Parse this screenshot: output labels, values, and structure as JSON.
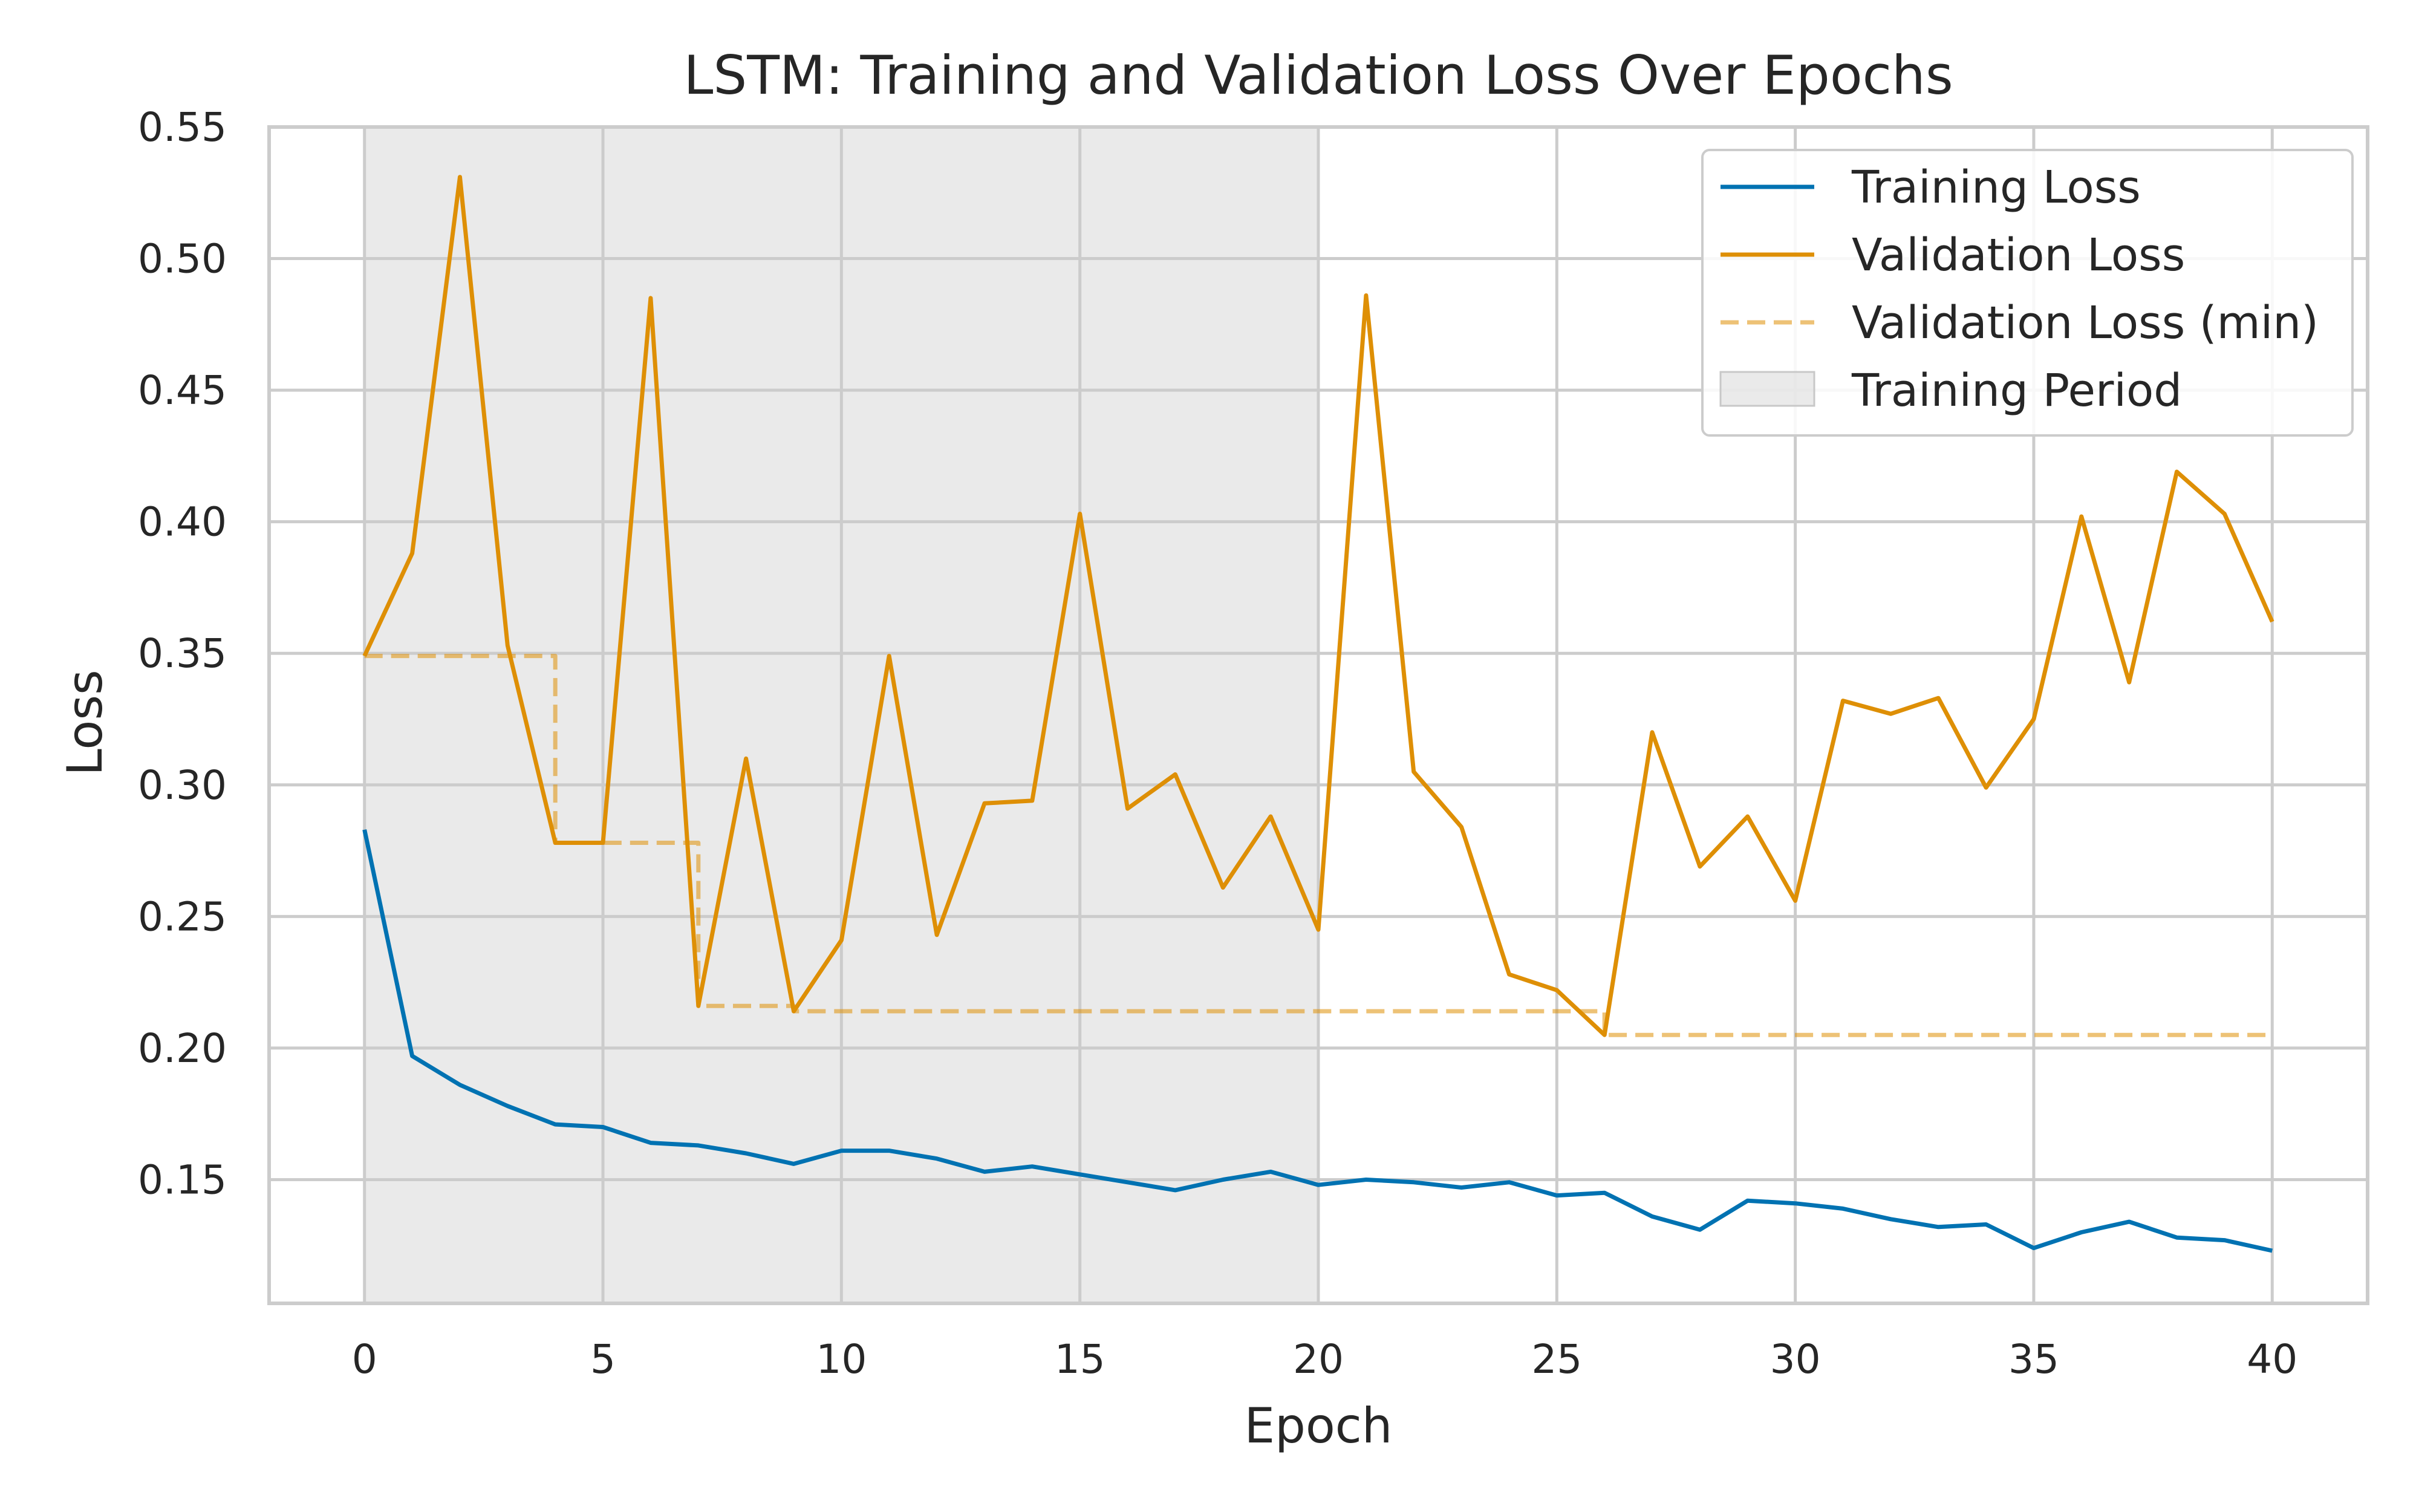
{
  "chart_data": {
    "type": "line",
    "title": "LSTM: Training and Validation Loss Over Epochs",
    "xlabel": "Epoch",
    "ylabel": "Loss",
    "xlim": [
      -2,
      42
    ],
    "ylim": [
      0.103,
      0.55
    ],
    "xticks": [
      0,
      5,
      10,
      15,
      20,
      25,
      30,
      35,
      40
    ],
    "xtick_labels": [
      "0",
      "5",
      "10",
      "15",
      "20",
      "25",
      "30",
      "35",
      "40"
    ],
    "yticks": [
      0.15,
      0.2,
      0.25,
      0.3,
      0.35,
      0.4,
      0.45,
      0.5,
      0.55
    ],
    "ytick_labels": [
      "0.15",
      "0.20",
      "0.25",
      "0.30",
      "0.35",
      "0.40",
      "0.45",
      "0.50",
      "0.55"
    ],
    "grid": true,
    "legend_position": "top-right",
    "shaded_region": {
      "name": "Training Period",
      "x_start": 0,
      "x_end": 20,
      "color": "#d9d9d9"
    },
    "series": [
      {
        "name": "Training Loss",
        "color": "#0072b2",
        "style": "solid",
        "x": [
          0,
          1,
          2,
          3,
          4,
          5,
          6,
          7,
          8,
          9,
          10,
          11,
          12,
          13,
          14,
          15,
          16,
          17,
          18,
          19,
          20,
          21,
          22,
          23,
          24,
          25,
          26,
          27,
          28,
          29,
          30,
          31,
          32,
          33,
          34,
          35,
          36,
          37,
          38,
          39,
          40
        ],
        "values": [
          0.283,
          0.197,
          0.186,
          0.178,
          0.171,
          0.17,
          0.164,
          0.163,
          0.16,
          0.156,
          0.161,
          0.161,
          0.158,
          0.153,
          0.155,
          0.152,
          0.149,
          0.146,
          0.15,
          0.153,
          0.148,
          0.15,
          0.149,
          0.147,
          0.149,
          0.144,
          0.145,
          0.136,
          0.131,
          0.142,
          0.141,
          0.139,
          0.135,
          0.132,
          0.133,
          0.124,
          0.13,
          0.134,
          0.128,
          0.127,
          0.123
        ]
      },
      {
        "name": "Validation Loss",
        "color": "#de8f05",
        "style": "solid",
        "x": [
          0,
          1,
          2,
          3,
          4,
          5,
          6,
          7,
          8,
          9,
          10,
          11,
          12,
          13,
          14,
          15,
          16,
          17,
          18,
          19,
          20,
          21,
          22,
          23,
          24,
          25,
          26,
          27,
          28,
          29,
          30,
          31,
          32,
          33,
          34,
          35,
          36,
          37,
          38,
          39,
          40
        ],
        "values": [
          0.349,
          0.388,
          0.531,
          0.353,
          0.278,
          0.278,
          0.485,
          0.216,
          0.31,
          0.214,
          0.241,
          0.349,
          0.243,
          0.293,
          0.294,
          0.403,
          0.291,
          0.304,
          0.261,
          0.288,
          0.245,
          0.486,
          0.305,
          0.284,
          0.228,
          0.222,
          0.205,
          0.32,
          0.269,
          0.288,
          0.256,
          0.332,
          0.327,
          0.333,
          0.299,
          0.325,
          0.402,
          0.339,
          0.419,
          0.403,
          0.362
        ]
      },
      {
        "name": "Validation Loss (min)",
        "color": "#de8f05",
        "style": "dashed",
        "x": [
          0,
          1,
          2,
          3,
          4,
          5,
          6,
          7,
          8,
          9,
          10,
          11,
          12,
          13,
          14,
          15,
          16,
          17,
          18,
          19,
          20,
          21,
          22,
          23,
          24,
          25,
          26,
          27,
          28,
          29,
          30,
          31,
          32,
          33,
          34,
          35,
          36,
          37,
          38,
          39,
          40
        ],
        "values": [
          0.349,
          0.349,
          0.349,
          0.349,
          0.278,
          0.278,
          0.278,
          0.216,
          0.216,
          0.214,
          0.214,
          0.214,
          0.214,
          0.214,
          0.214,
          0.214,
          0.214,
          0.214,
          0.214,
          0.214,
          0.214,
          0.214,
          0.214,
          0.214,
          0.214,
          0.214,
          0.205,
          0.205,
          0.205,
          0.205,
          0.205,
          0.205,
          0.205,
          0.205,
          0.205,
          0.205,
          0.205,
          0.205,
          0.205,
          0.205,
          0.205
        ]
      }
    ],
    "legend": [
      "Training Loss",
      "Validation Loss",
      "Validation Loss (min)",
      "Training Period"
    ]
  }
}
